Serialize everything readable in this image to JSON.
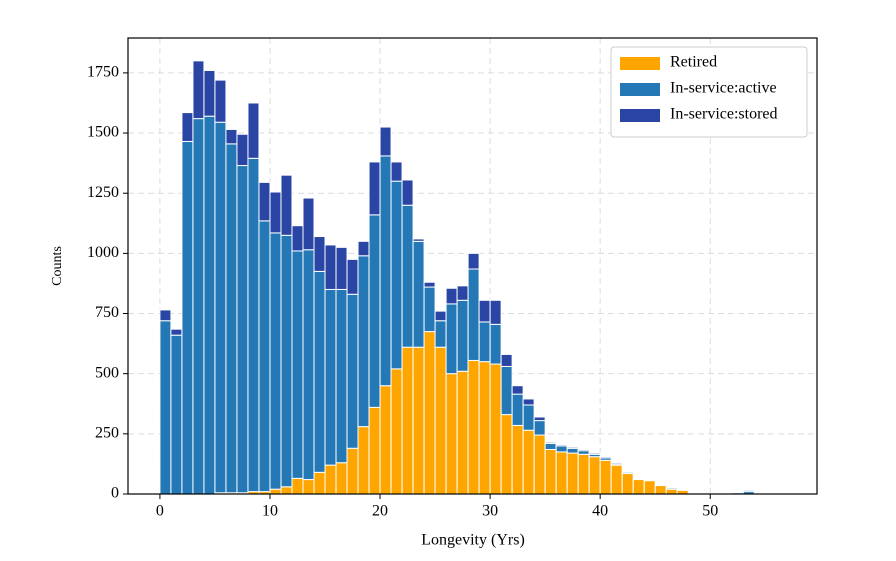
{
  "chart_data": {
    "type": "stacked-histogram",
    "xlabel": "Longevity (Yrs)",
    "ylabel": "Counts",
    "bins": [
      0,
      1,
      2,
      3,
      4,
      5,
      6,
      7,
      8,
      9,
      10,
      11,
      12,
      13,
      14,
      15,
      16,
      17,
      18,
      19,
      20,
      21,
      22,
      23,
      24,
      25,
      26,
      27,
      28,
      29,
      30,
      31,
      32,
      33,
      34,
      35,
      36,
      37,
      38,
      39,
      40,
      41,
      42,
      43,
      44,
      45,
      46,
      47,
      48,
      49,
      50,
      51,
      52,
      53,
      54,
      55
    ],
    "series": [
      {
        "name": "Retired",
        "color": "#ffa500",
        "values": [
          0,
          0,
          0,
          0,
          0,
          5,
          5,
          5,
          10,
          10,
          20,
          30,
          65,
          60,
          90,
          120,
          130,
          190,
          280,
          360,
          450,
          520,
          610,
          610,
          675,
          610,
          500,
          510,
          555,
          550,
          540,
          330,
          285,
          265,
          245,
          185,
          175,
          170,
          165,
          155,
          140,
          120,
          85,
          60,
          55,
          35,
          20,
          15,
          0,
          0,
          0,
          0,
          0,
          0,
          0
        ]
      },
      {
        "name": "In-service:active",
        "color": "#2378b5",
        "values": [
          720,
          660,
          1465,
          1560,
          1570,
          1540,
          1450,
          1360,
          1385,
          1125,
          1065,
          1045,
          945,
          955,
          835,
          730,
          720,
          640,
          710,
          800,
          955,
          780,
          590,
          440,
          185,
          110,
          290,
          295,
          380,
          165,
          165,
          200,
          130,
          105,
          60,
          25,
          25,
          20,
          15,
          10,
          10,
          5,
          5,
          0,
          0,
          0,
          5,
          0,
          0,
          0,
          0,
          0,
          5,
          10,
          0
        ]
      },
      {
        "name": "In-service:stored",
        "color": "#2a45a4",
        "values": [
          45,
          25,
          120,
          240,
          190,
          175,
          60,
          130,
          230,
          160,
          170,
          250,
          105,
          215,
          145,
          185,
          175,
          145,
          60,
          220,
          120,
          80,
          105,
          10,
          20,
          40,
          65,
          60,
          65,
          90,
          100,
          50,
          35,
          25,
          15,
          5,
          5,
          5,
          5,
          5,
          5,
          5,
          0,
          0,
          0,
          0,
          0,
          0,
          0,
          0,
          0,
          0,
          0,
          5,
          0
        ]
      }
    ],
    "xlim": [
      -2.9,
      59.7
    ],
    "ylim": [
      0,
      1895
    ],
    "xticks": [
      0,
      10,
      20,
      30,
      40,
      50
    ],
    "yticks": [
      0,
      250,
      500,
      750,
      1000,
      1250,
      1500,
      1750
    ],
    "grid": true,
    "legend": "upper right"
  }
}
